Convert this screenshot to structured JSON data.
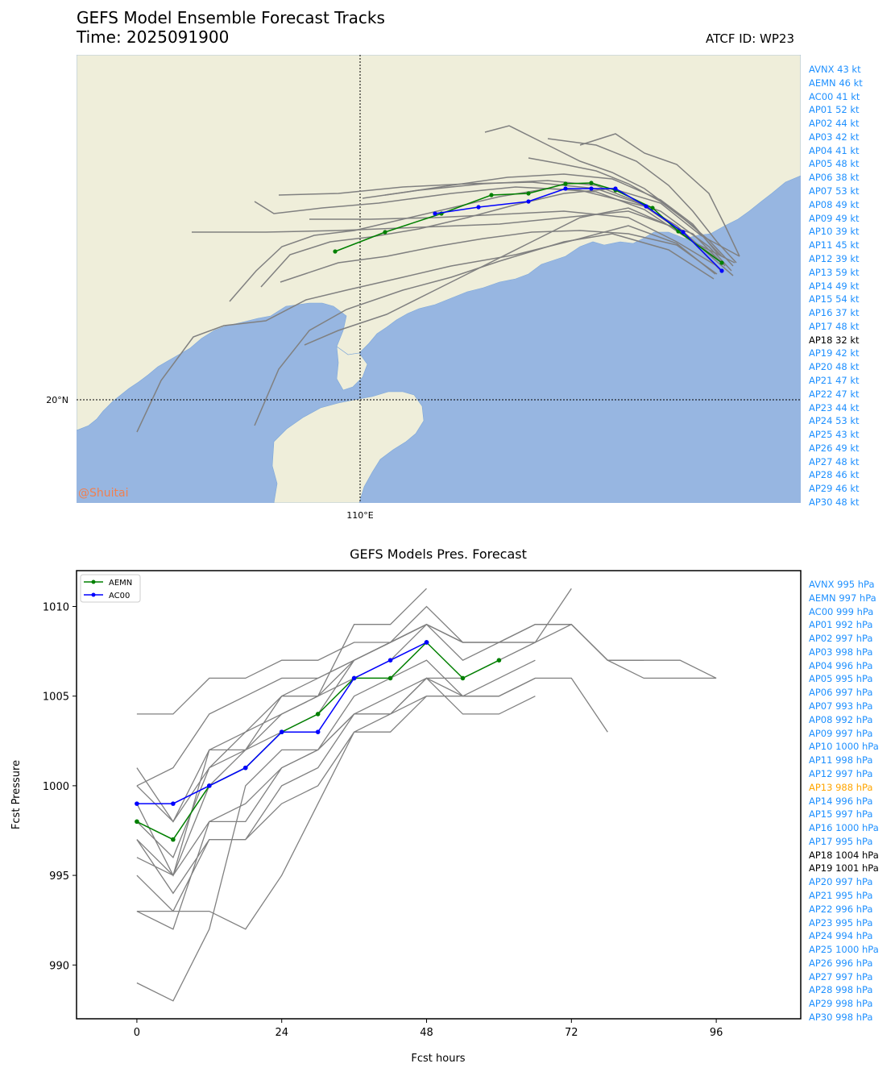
{
  "header": {
    "title": "GEFS Model Ensemble Forecast Tracks",
    "time_label": "Time: 2025091900",
    "atcf_label": "ATCF ID: WP23"
  },
  "map": {
    "lat_label": "20°N",
    "lon_label": "110°E",
    "watermark": "@Shuitai",
    "land_color": "#efeeda",
    "sea_color": "#97b6e1",
    "legend": [
      {
        "text": "AVNX 43 kt",
        "color": "#1e90ff"
      },
      {
        "text": "AEMN 46 kt",
        "color": "#1e90ff"
      },
      {
        "text": "AC00 41 kt",
        "color": "#1e90ff"
      },
      {
        "text": "AP01 52 kt",
        "color": "#1e90ff"
      },
      {
        "text": "AP02 44 kt",
        "color": "#1e90ff"
      },
      {
        "text": "AP03 42 kt",
        "color": "#1e90ff"
      },
      {
        "text": "AP04 41 kt",
        "color": "#1e90ff"
      },
      {
        "text": "AP05 48 kt",
        "color": "#1e90ff"
      },
      {
        "text": "AP06 38 kt",
        "color": "#1e90ff"
      },
      {
        "text": "AP07 53 kt",
        "color": "#1e90ff"
      },
      {
        "text": "AP08 49 kt",
        "color": "#1e90ff"
      },
      {
        "text": "AP09 49 kt",
        "color": "#1e90ff"
      },
      {
        "text": "AP10 39 kt",
        "color": "#1e90ff"
      },
      {
        "text": "AP11 45 kt",
        "color": "#1e90ff"
      },
      {
        "text": "AP12 39 kt",
        "color": "#1e90ff"
      },
      {
        "text": "AP13 59 kt",
        "color": "#1e90ff"
      },
      {
        "text": "AP14 49 kt",
        "color": "#1e90ff"
      },
      {
        "text": "AP15 54 kt",
        "color": "#1e90ff"
      },
      {
        "text": "AP16 37 kt",
        "color": "#1e90ff"
      },
      {
        "text": "AP17 48 kt",
        "color": "#1e90ff"
      },
      {
        "text": "AP18 32 kt",
        "color": "#000000"
      },
      {
        "text": "AP19 42 kt",
        "color": "#1e90ff"
      },
      {
        "text": "AP20 48 kt",
        "color": "#1e90ff"
      },
      {
        "text": "AP21 47 kt",
        "color": "#1e90ff"
      },
      {
        "text": "AP22 47 kt",
        "color": "#1e90ff"
      },
      {
        "text": "AP23 44 kt",
        "color": "#1e90ff"
      },
      {
        "text": "AP24 53 kt",
        "color": "#1e90ff"
      },
      {
        "text": "AP25 43 kt",
        "color": "#1e90ff"
      },
      {
        "text": "AP26 49 kt",
        "color": "#1e90ff"
      },
      {
        "text": "AP27 48 kt",
        "color": "#1e90ff"
      },
      {
        "text": "AP28 46 kt",
        "color": "#1e90ff"
      },
      {
        "text": "AP29 46 kt",
        "color": "#1e90ff"
      },
      {
        "text": "AP30 48 kt",
        "color": "#1e90ff"
      }
    ]
  },
  "chart_data": {
    "type": "line",
    "title": "GEFS Models Pres. Forecast",
    "xlabel": "Fcst hours",
    "ylabel": "Fcst Pressure",
    "xlim": [
      -10,
      110
    ],
    "ylim": [
      987,
      1012
    ],
    "xticks": [
      0,
      24,
      48,
      72,
      96
    ],
    "yticks": [
      990,
      995,
      1000,
      1005,
      1010
    ],
    "legend_position": "upper-left",
    "series": [
      {
        "name": "AEMN",
        "color": "#008000",
        "x": [
          0,
          6,
          12,
          18,
          24,
          30,
          36,
          42,
          48,
          54,
          60
        ],
        "y": [
          998,
          997,
          1000,
          1001,
          1003,
          1004,
          1006,
          1006,
          1008,
          1006,
          1007
        ]
      },
      {
        "name": "AC00",
        "color": "#0000ff",
        "x": [
          0,
          6,
          12,
          18,
          24,
          30,
          36,
          42,
          48
        ],
        "y": [
          999,
          999,
          1000,
          1001,
          1003,
          1003,
          1006,
          1007,
          1008
        ]
      }
    ],
    "members": [
      {
        "x": [
          0,
          6,
          12,
          18,
          24,
          30,
          36,
          42,
          48,
          54,
          60,
          66,
          72,
          78,
          84
        ],
        "y": [
          1004,
          1004,
          1006,
          1006,
          1007,
          1007,
          1008,
          1008,
          1009,
          1008,
          1008,
          1009,
          1009,
          1007,
          1007
        ]
      },
      {
        "x": [
          0,
          6,
          12,
          18,
          24,
          30,
          36,
          42,
          48,
          54,
          60,
          66,
          72,
          78,
          84,
          90,
          96
        ],
        "y": [
          1000,
          1001,
          1004,
          1005,
          1006,
          1006,
          1007,
          1008,
          1009,
          1008,
          1008,
          1009,
          1009,
          1007,
          1007,
          1007,
          1006
        ]
      },
      {
        "x": [
          0,
          6,
          12,
          18,
          24,
          30,
          36,
          42,
          48
        ],
        "y": [
          1000,
          998,
          1002,
          1002,
          1005,
          1005,
          1009,
          1009,
          1011
        ]
      },
      {
        "x": [
          0,
          6,
          12,
          18,
          24,
          30,
          36,
          42,
          48,
          54,
          60,
          66,
          72
        ],
        "y": [
          998,
          996,
          1001,
          1003,
          1005,
          1006,
          1007,
          1008,
          1010,
          1008,
          1008,
          1008,
          1011
        ]
      },
      {
        "x": [
          0,
          6,
          12,
          18,
          24,
          30,
          36,
          42,
          48,
          54,
          60,
          66,
          72,
          78,
          84,
          90,
          96
        ],
        "y": [
          997,
          995,
          1000,
          1002,
          1004,
          1005,
          1007,
          1008,
          1009,
          1007,
          1008,
          1008,
          1009,
          1007,
          1006,
          1006,
          1006
        ]
      },
      {
        "x": [
          0,
          6,
          12,
          18,
          24,
          30,
          36,
          42,
          48,
          54,
          60,
          66,
          72,
          78
        ],
        "y": [
          996,
          995,
          998,
          999,
          1001,
          1002,
          1004,
          1005,
          1006,
          1005,
          1005,
          1006,
          1006,
          1003
        ]
      },
      {
        "x": [
          0,
          6,
          12,
          18,
          24,
          30,
          36,
          42,
          48,
          54,
          60,
          66
        ],
        "y": [
          995,
          993,
          993,
          992,
          995,
          999,
          1003,
          1004,
          1005,
          1005,
          1005,
          1006
        ]
      },
      {
        "x": [
          0,
          6,
          12,
          18,
          24,
          30,
          36,
          42,
          48,
          54,
          60,
          66
        ],
        "y": [
          993,
          992,
          998,
          998,
          1001,
          1002,
          1004,
          1004,
          1006,
          1004,
          1004,
          1005
        ]
      },
      {
        "x": [
          0,
          6,
          12,
          18,
          24,
          30,
          36,
          42,
          48,
          54,
          60,
          66
        ],
        "y": [
          989,
          988,
          992,
          1000,
          1002,
          1002,
          1005,
          1006,
          1007,
          1005,
          1006,
          1007
        ]
      },
      {
        "x": [
          0,
          6,
          12,
          18,
          24,
          30,
          36,
          42,
          48
        ],
        "y": [
          993,
          993,
          997,
          997,
          999,
          1000,
          1003,
          1003,
          1005
        ]
      },
      {
        "x": [
          0,
          6,
          12,
          18,
          24,
          30,
          36,
          42,
          48,
          54,
          60,
          66
        ],
        "y": [
          997,
          994,
          997,
          997,
          1000,
          1001,
          1004,
          1004,
          1006,
          1006,
          1007,
          1008
        ]
      },
      {
        "x": [
          0,
          6,
          12,
          18,
          24,
          30,
          36,
          42,
          48
        ],
        "y": [
          1001,
          998,
          1001,
          1002,
          1003,
          1004,
          1007,
          1008,
          1009
        ]
      },
      {
        "x": [
          0,
          6,
          12,
          18,
          24,
          30,
          36,
          42,
          48,
          54
        ],
        "y": [
          999,
          995,
          1002,
          1003,
          1004,
          1005,
          1006,
          1007,
          1009,
          1008
        ]
      }
    ]
  }
}
